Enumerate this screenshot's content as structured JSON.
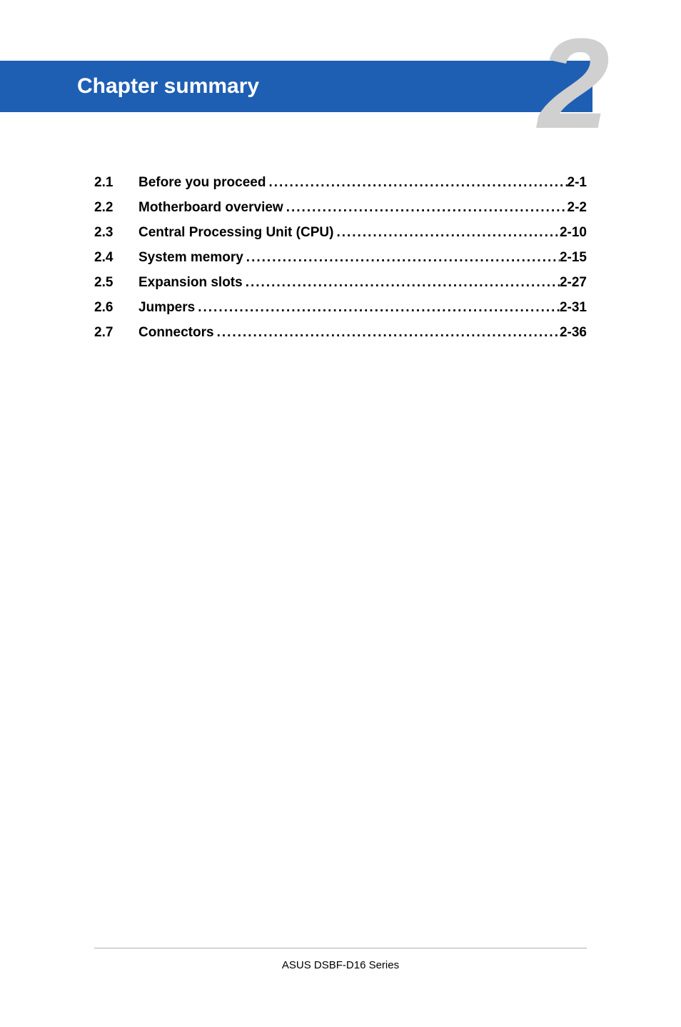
{
  "banner": {
    "title": "Chapter summary",
    "number": "2",
    "bg_color": "#1e5fb4",
    "title_color": "#ffffff",
    "number_color": "#d0d0d0"
  },
  "toc": {
    "items": [
      {
        "num": "2.1",
        "title": "Before you proceed",
        "page": "2-1"
      },
      {
        "num": "2.2",
        "title": "Motherboard overview",
        "page": "2-2"
      },
      {
        "num": "2.3",
        "title": "Central Processing Unit (CPU)",
        "page": "2-10"
      },
      {
        "num": "2.4",
        "title": "System memory",
        "page": "2-15"
      },
      {
        "num": "2.5",
        "title": "Expansion slots",
        "page": "2-27"
      },
      {
        "num": "2.6",
        "title": "Jumpers",
        "page": "2-31"
      },
      {
        "num": "2.7",
        "title": "Connectors",
        "page": "2-36"
      }
    ]
  },
  "footer": {
    "text": "ASUS DSBF-D16 Series"
  }
}
